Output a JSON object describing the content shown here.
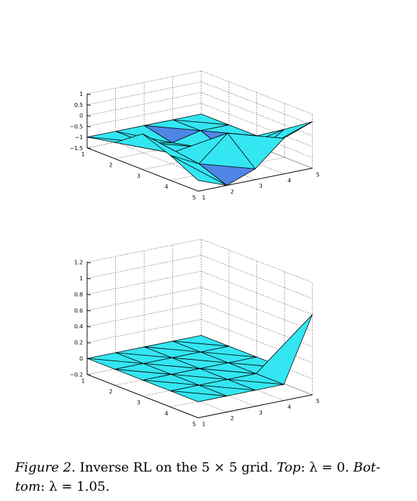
{
  "caption": {
    "label": "Figure 2.",
    "text1": "Inverse RL on the 5 × 5 grid.",
    "top_word": "Top",
    "top_value": ": λ = 0.",
    "bottom_word": "Bot-",
    "bottom_word2": "tom",
    "bottom_value": ": λ = 1.05."
  },
  "colors": {
    "surface": "#33e6f2",
    "surface_dark": "#4f86e6",
    "edge": "#000000",
    "grid": "#808080"
  },
  "chart_data": [
    {
      "type": "surface",
      "title": "",
      "grid_size": [
        5,
        5
      ],
      "x": [
        1,
        2,
        3,
        4,
        5
      ],
      "y": [
        1,
        2,
        3,
        4,
        5
      ],
      "zlim": [
        -1.5,
        1
      ],
      "zticks": [
        "1",
        "0.5",
        "0",
        "−0.5",
        "−1",
        "−1.5"
      ],
      "zticks_values": [
        1,
        0.5,
        0,
        -0.5,
        -1,
        -1.5
      ],
      "x_ticks": [
        "1",
        "2",
        "3",
        "4",
        "5"
      ],
      "y_ticks": [
        "1",
        "2",
        "3",
        "4",
        "5"
      ],
      "z": [
        [
          -1.0,
          -1.0,
          -1.0,
          -1.0,
          -1.0
        ],
        [
          -0.75,
          -1.0,
          -1.3,
          -1.0,
          -1.0
        ],
        [
          0.15,
          -1.0,
          -1.0,
          -1.5,
          -1.0
        ],
        [
          -0.35,
          -1.0,
          0.15,
          -1.0,
          -0.2
        ],
        [
          -1.0,
          -1.5,
          -1.0,
          0.15,
          0.65
        ]
      ],
      "grid": true
    },
    {
      "type": "surface",
      "title": "",
      "grid_size": [
        5,
        5
      ],
      "x": [
        1,
        2,
        3,
        4,
        5
      ],
      "y": [
        1,
        2,
        3,
        4,
        5
      ],
      "zlim": [
        -0.2,
        1.2
      ],
      "zticks": [
        "1.2",
        "1",
        "0.8",
        "0.6",
        "0.4",
        "0.2",
        "0",
        "−0.2"
      ],
      "zticks_values": [
        1.2,
        1.0,
        0.8,
        0.6,
        0.4,
        0.2,
        0,
        -0.2
      ],
      "x_ticks": [
        "1",
        "2",
        "3",
        "4",
        "5"
      ],
      "y_ticks": [
        "1",
        "2",
        "3",
        "4",
        "5"
      ],
      "z": [
        [
          0,
          0,
          0,
          0,
          0
        ],
        [
          0,
          0,
          0,
          0,
          0
        ],
        [
          0,
          0,
          0,
          0,
          0
        ],
        [
          0,
          0,
          0,
          0,
          0
        ],
        [
          0,
          0,
          0,
          0,
          0.8
        ]
      ],
      "grid": true
    }
  ]
}
